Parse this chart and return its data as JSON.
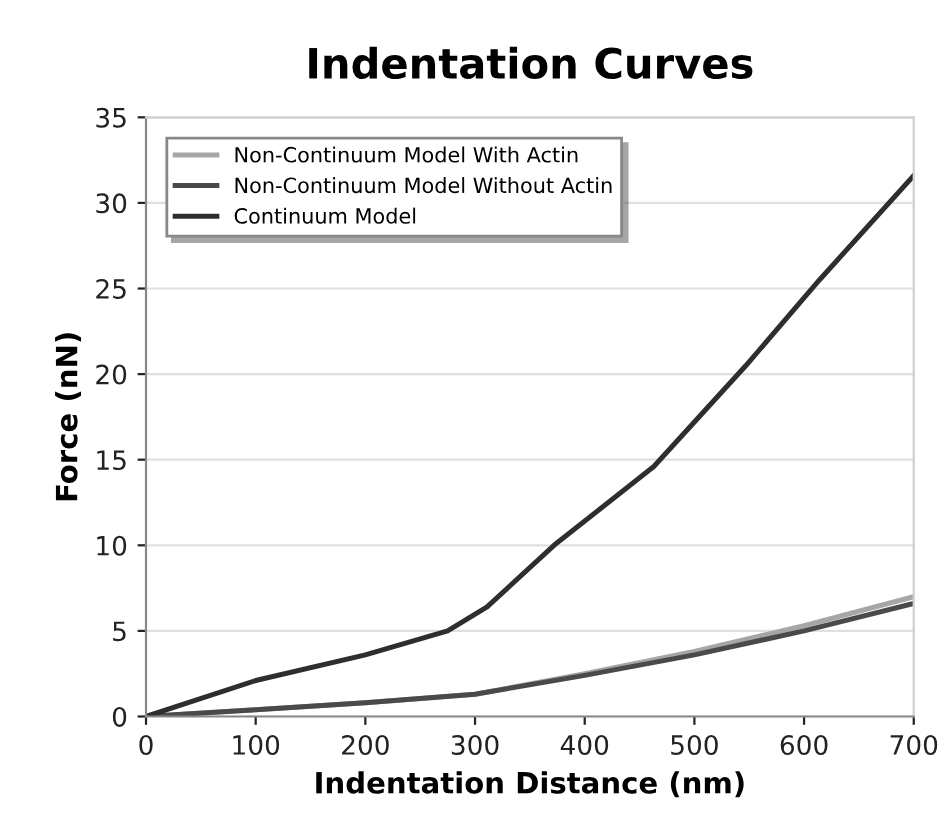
{
  "chart_data": {
    "type": "line",
    "title": "Indentation Curves",
    "xlabel": "Indentation Distance (nm)",
    "ylabel": "Force (nN)",
    "xlim": [
      0,
      700
    ],
    "xticks": [
      0,
      100,
      200,
      300,
      400,
      500,
      600,
      700
    ],
    "ylim": [
      0,
      35
    ],
    "yticks": [
      0,
      5,
      10,
      15,
      20,
      25,
      30,
      35
    ],
    "grid": "y",
    "legend": "top left",
    "marker": "none",
    "line_style": "solid",
    "series": [
      {
        "name": "Non-Continuum Model With Actin",
        "color": "#a6a6a6",
        "x": [
          0,
          100,
          200,
          300,
          400,
          500,
          600,
          700
        ],
        "values": [
          0,
          0.4,
          0.8,
          1.3,
          2.5,
          3.8,
          5.3,
          7.0
        ]
      },
      {
        "name": "Non-Continuum Model Without Actin",
        "color": "#4a4a4a",
        "x": [
          0,
          100,
          200,
          300,
          400,
          500,
          600,
          700
        ],
        "values": [
          0,
          0.4,
          0.8,
          1.3,
          2.4,
          3.6,
          5.0,
          6.6
        ]
      },
      {
        "name": "Continuum Model",
        "color": "#2e2e2e",
        "x": [
          0,
          100,
          200,
          275,
          311,
          372,
          463,
          547,
          614,
          700
        ],
        "values": [
          0,
          2.1,
          3.6,
          5.0,
          6.4,
          10.0,
          14.6,
          20.5,
          25.5,
          31.6
        ]
      }
    ]
  }
}
